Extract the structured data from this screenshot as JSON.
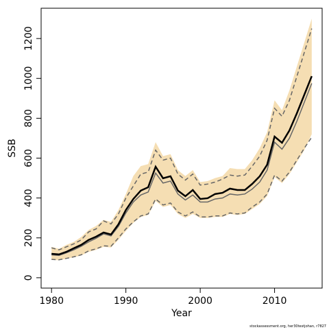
{
  "chart_data": {
    "type": "line",
    "footnote": "stockassessment.org, her30testjohan, r7827",
    "xlabel": "Year",
    "ylabel": "SSB",
    "x": [
      1980,
      1981,
      1982,
      1983,
      1984,
      1985,
      1986,
      1987,
      1988,
      1989,
      1990,
      1991,
      1992,
      1993,
      1994,
      1995,
      1996,
      1997,
      1998,
      1999,
      2000,
      2001,
      2002,
      2003,
      2004,
      2005,
      2006,
      2007,
      2008,
      2009,
      2010,
      2011,
      2012,
      2013,
      2014,
      2015
    ],
    "xlim": [
      1978.6,
      2016.4
    ],
    "xticks": [
      1980,
      1990,
      2000,
      2010
    ],
    "ylim": [
      -52,
      1352
    ],
    "yticks": [
      0,
      200,
      400,
      600,
      800,
      1000,
      1200
    ],
    "band": {
      "color": "#f5deb3",
      "upper": [
        155,
        145,
        165,
        180,
        205,
        240,
        260,
        290,
        280,
        340,
        420,
        510,
        560,
        570,
        680,
        610,
        620,
        540,
        510,
        540,
        480,
        485,
        500,
        510,
        550,
        545,
        545,
        590,
        650,
        730,
        890,
        840,
        940,
        1060,
        1180,
        1300
      ],
      "lower": [
        90,
        88,
        95,
        103,
        112,
        130,
        140,
        155,
        152,
        190,
        235,
        275,
        305,
        315,
        385,
        355,
        365,
        320,
        300,
        320,
        300,
        300,
        305,
        305,
        320,
        315,
        320,
        345,
        370,
        410,
        505,
        475,
        520,
        580,
        640,
        720
      ]
    },
    "series": [
      {
        "color": "#666666",
        "dashed": true,
        "width": 1.5,
        "values": [
          150,
          140,
          155,
          170,
          190,
          230,
          245,
          285,
          270,
          320,
          400,
          460,
          520,
          530,
          640,
          590,
          600,
          520,
          490,
          520,
          465,
          470,
          480,
          495,
          515,
          510,
          515,
          560,
          610,
          690,
          850,
          810,
          890,
          1010,
          1130,
          1250
        ]
      },
      {
        "color": "#666666",
        "dashed": true,
        "width": 1.5,
        "values": [
          92,
          90,
          97,
          105,
          115,
          135,
          145,
          160,
          158,
          200,
          245,
          280,
          310,
          320,
          395,
          365,
          375,
          330,
          310,
          330,
          305,
          305,
          310,
          310,
          325,
          320,
          325,
          355,
          380,
          420,
          515,
          485,
          530,
          590,
          650,
          705
        ]
      },
      {
        "color": "#666666",
        "dashed": false,
        "width": 1.5,
        "values": [
          115,
          112,
          125,
          140,
          158,
          180,
          198,
          220,
          210,
          258,
          325,
          380,
          415,
          430,
          525,
          475,
          485,
          420,
          390,
          415,
          380,
          380,
          395,
          400,
          420,
          415,
          420,
          445,
          480,
          540,
          680,
          645,
          700,
          785,
          880,
          975
        ]
      },
      {
        "color": "#000000",
        "dashed": false,
        "width": 2.5,
        "values": [
          120,
          117,
          130,
          148,
          165,
          190,
          206,
          227,
          217,
          268,
          340,
          395,
          437,
          454,
          557,
          499,
          509,
          437,
          409,
          440,
          395,
          399,
          420,
          426,
          447,
          440,
          440,
          471,
          509,
          567,
          708,
          677,
          739,
          825,
          918,
          1011
        ]
      }
    ]
  }
}
